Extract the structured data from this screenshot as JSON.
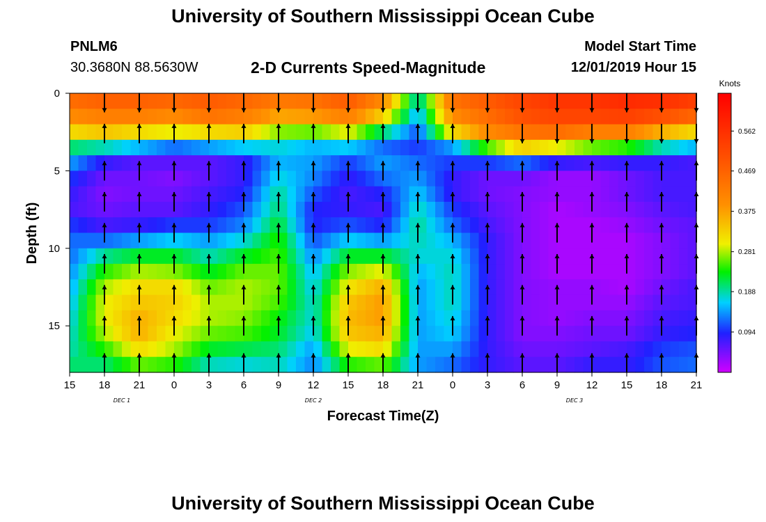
{
  "header": {
    "title": "University of Southern Mississippi Ocean Cube",
    "station": "PNLM6",
    "coords": "30.3680N 88.5630W",
    "subtitle": "2-D Currents Speed-Magnitude",
    "model_start_label": "Model Start Time",
    "model_start_value": "12/01/2019 Hour 15"
  },
  "footer": {
    "title": "University of Southern Mississippi Ocean Cube"
  },
  "chart_data": {
    "type": "heatmap",
    "xlabel": "Forecast Time(Z)",
    "ylabel": "Depth (ft)",
    "x_ticks": [
      "15",
      "18",
      "21",
      "0",
      "3",
      "6",
      "9",
      "12",
      "15",
      "18",
      "21",
      "0",
      "3",
      "6",
      "9",
      "12",
      "15",
      "18",
      "21"
    ],
    "x_day_labels": [
      {
        "label": "DEC 1",
        "at_tick": 1.5
      },
      {
        "label": "DEC 2",
        "at_tick": 7
      },
      {
        "label": "DEC 3",
        "at_tick": 14.5
      }
    ],
    "x_range_hours": [
      0,
      54
    ],
    "y_ticks": [
      0,
      5,
      10,
      15
    ],
    "ylim": [
      0,
      18
    ],
    "y_inverted": true,
    "colorbar": {
      "title": "Knots",
      "ticks": [
        0.094,
        0.188,
        0.281,
        0.375,
        0.469,
        0.562
      ],
      "range": [
        0,
        0.65
      ]
    },
    "columns": [
      {
        "hour": 0,
        "speed": [
          0.45,
          0.4,
          0.32,
          0.2,
          0.14,
          0.1,
          0.08,
          0.07,
          0.1,
          0.12,
          0.12,
          0.13,
          0.14,
          0.15,
          0.16,
          0.17,
          0.18,
          0.2
        ]
      },
      {
        "hour": 3,
        "speed": [
          0.47,
          0.42,
          0.34,
          0.18,
          0.08,
          0.05,
          0.04,
          0.05,
          0.07,
          0.12,
          0.19,
          0.24,
          0.28,
          0.3,
          0.3,
          0.28,
          0.24,
          0.2
        ]
      },
      {
        "hour": 6,
        "speed": [
          0.47,
          0.42,
          0.32,
          0.15,
          0.06,
          0.05,
          0.05,
          0.06,
          0.08,
          0.14,
          0.22,
          0.28,
          0.32,
          0.34,
          0.36,
          0.36,
          0.32,
          0.26
        ]
      },
      {
        "hour": 9,
        "speed": [
          0.46,
          0.4,
          0.3,
          0.12,
          0.06,
          0.04,
          0.05,
          0.06,
          0.1,
          0.16,
          0.22,
          0.27,
          0.32,
          0.33,
          0.32,
          0.3,
          0.28,
          0.24
        ]
      },
      {
        "hour": 12,
        "speed": [
          0.48,
          0.44,
          0.32,
          0.14,
          0.06,
          0.06,
          0.07,
          0.08,
          0.1,
          0.14,
          0.18,
          0.22,
          0.26,
          0.28,
          0.28,
          0.26,
          0.22,
          0.18
        ]
      },
      {
        "hour": 15,
        "speed": [
          0.46,
          0.42,
          0.33,
          0.16,
          0.08,
          0.08,
          0.09,
          0.11,
          0.13,
          0.17,
          0.22,
          0.26,
          0.28,
          0.28,
          0.27,
          0.25,
          0.21,
          0.17
        ]
      },
      {
        "hour": 18,
        "speed": [
          0.43,
          0.37,
          0.27,
          0.17,
          0.15,
          0.17,
          0.19,
          0.2,
          0.22,
          0.24,
          0.25,
          0.26,
          0.26,
          0.25,
          0.23,
          0.22,
          0.2,
          0.18
        ]
      },
      {
        "hour": 21,
        "speed": [
          0.44,
          0.38,
          0.26,
          0.15,
          0.14,
          0.13,
          0.11,
          0.09,
          0.09,
          0.11,
          0.13,
          0.15,
          0.16,
          0.17,
          0.17,
          0.16,
          0.14,
          0.13
        ]
      },
      {
        "hour": 24,
        "speed": [
          0.48,
          0.42,
          0.3,
          0.16,
          0.1,
          0.08,
          0.07,
          0.08,
          0.11,
          0.16,
          0.22,
          0.27,
          0.31,
          0.34,
          0.35,
          0.34,
          0.3,
          0.24
        ]
      },
      {
        "hour": 27,
        "speed": [
          0.4,
          0.33,
          0.2,
          0.12,
          0.14,
          0.12,
          0.09,
          0.07,
          0.09,
          0.14,
          0.22,
          0.3,
          0.36,
          0.38,
          0.38,
          0.36,
          0.32,
          0.26
        ]
      },
      {
        "hour": 30,
        "speed": [
          0.17,
          0.14,
          0.11,
          0.1,
          0.12,
          0.14,
          0.16,
          0.18,
          0.19,
          0.18,
          0.17,
          0.15,
          0.14,
          0.14,
          0.14,
          0.14,
          0.14,
          0.14
        ]
      },
      {
        "hour": 33,
        "speed": [
          0.44,
          0.4,
          0.32,
          0.14,
          0.1,
          0.08,
          0.08,
          0.1,
          0.12,
          0.15,
          0.17,
          0.18,
          0.18,
          0.18,
          0.17,
          0.16,
          0.14,
          0.12
        ]
      },
      {
        "hour": 36,
        "speed": [
          0.48,
          0.45,
          0.4,
          0.25,
          0.1,
          0.05,
          0.05,
          0.06,
          0.07,
          0.08,
          0.08,
          0.08,
          0.08,
          0.08,
          0.08,
          0.08,
          0.08,
          0.08
        ]
      },
      {
        "hour": 39,
        "speed": [
          0.52,
          0.5,
          0.44,
          0.33,
          0.12,
          0.05,
          0.04,
          0.04,
          0.04,
          0.04,
          0.04,
          0.04,
          0.04,
          0.04,
          0.04,
          0.04,
          0.05,
          0.06
        ]
      },
      {
        "hour": 42,
        "speed": [
          0.55,
          0.52,
          0.45,
          0.3,
          0.08,
          0.03,
          0.03,
          0.02,
          0.02,
          0.02,
          0.02,
          0.02,
          0.03,
          0.03,
          0.03,
          0.04,
          0.05,
          0.06
        ]
      },
      {
        "hour": 45,
        "speed": [
          0.55,
          0.52,
          0.42,
          0.26,
          0.07,
          0.03,
          0.03,
          0.03,
          0.02,
          0.02,
          0.02,
          0.02,
          0.03,
          0.03,
          0.04,
          0.05,
          0.06,
          0.08
        ]
      },
      {
        "hour": 48,
        "speed": [
          0.57,
          0.53,
          0.42,
          0.24,
          0.08,
          0.05,
          0.05,
          0.04,
          0.03,
          0.02,
          0.02,
          0.02,
          0.02,
          0.03,
          0.04,
          0.05,
          0.07,
          0.08
        ]
      },
      {
        "hour": 51,
        "speed": [
          0.56,
          0.5,
          0.36,
          0.18,
          0.08,
          0.07,
          0.07,
          0.06,
          0.05,
          0.04,
          0.04,
          0.04,
          0.05,
          0.06,
          0.07,
          0.08,
          0.1,
          0.11
        ]
      },
      {
        "hour": 54,
        "speed": [
          0.53,
          0.46,
          0.32,
          0.15,
          0.07,
          0.07,
          0.07,
          0.07,
          0.06,
          0.06,
          0.06,
          0.06,
          0.07,
          0.07,
          0.08,
          0.09,
          0.11,
          0.12
        ]
      }
    ]
  }
}
